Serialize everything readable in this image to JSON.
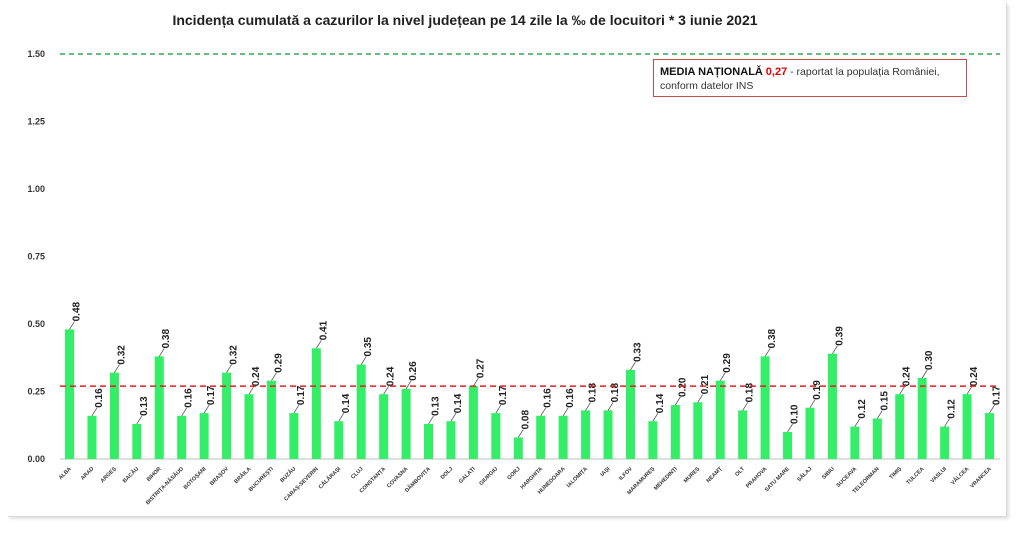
{
  "chart_data": {
    "type": "bar",
    "title": "Incidența cumulată a cazurilor la nivel județean pe 14 zile la ‰ de locuitori *  3 iunie 2021",
    "categories": [
      "ALBA",
      "ARAD",
      "ARGEȘ",
      "BACĂU",
      "BIHOR",
      "BISTRIȚA-NĂSĂUD",
      "BOTOȘANI",
      "BRAȘOV",
      "BRĂILA",
      "BUCUREȘTI",
      "BUZĂU",
      "CARAȘ-SEVERIN",
      "CĂLĂRAȘI",
      "CLUJ",
      "CONSTANȚA",
      "COVASNA",
      "DÂMBOVIȚA",
      "DOLJ",
      "GALAȚI",
      "GIURGIU",
      "GORJ",
      "HARGHITA",
      "HUNEDOARA",
      "IALOMIȚA",
      "IAȘI",
      "ILFOV",
      "MARAMUREȘ",
      "MEHEDINȚI",
      "MUREȘ",
      "NEAMȚ",
      "OLT",
      "PRAHOVA",
      "SATU MARE",
      "SĂLAJ",
      "SIBIU",
      "SUCEAVA",
      "TELEORMAN",
      "TIMIȘ",
      "TULCEA",
      "VASLUI",
      "VÂLCEA",
      "VRANCEA"
    ],
    "values": [
      0.48,
      0.16,
      0.32,
      0.13,
      0.38,
      0.16,
      0.17,
      0.32,
      0.24,
      0.29,
      0.17,
      0.41,
      0.14,
      0.35,
      0.24,
      0.26,
      0.13,
      0.14,
      0.27,
      0.17,
      0.08,
      0.16,
      0.16,
      0.18,
      0.18,
      0.33,
      0.14,
      0.2,
      0.21,
      0.29,
      0.18,
      0.38,
      0.1,
      0.19,
      0.39,
      0.12,
      0.15,
      0.24,
      0.3,
      0.12,
      0.24,
      0.17
    ],
    "yticks": [
      "0.00",
      "0.25",
      "0.50",
      "0.75",
      "1.00",
      "1.25",
      "1.50"
    ],
    "ylim": [
      0,
      1.5
    ],
    "threshold_line": 1.5,
    "national_average": 0.27,
    "colors": {
      "bar": "#33ee66",
      "average_line": "#e02020",
      "threshold_line": "#33aa55"
    }
  },
  "legend": {
    "label": "MEDIA NAȚIONALĂ",
    "value": "0,27",
    "text_line1": " - raportat la populația României,",
    "text_line2": "conform datelor INS"
  }
}
